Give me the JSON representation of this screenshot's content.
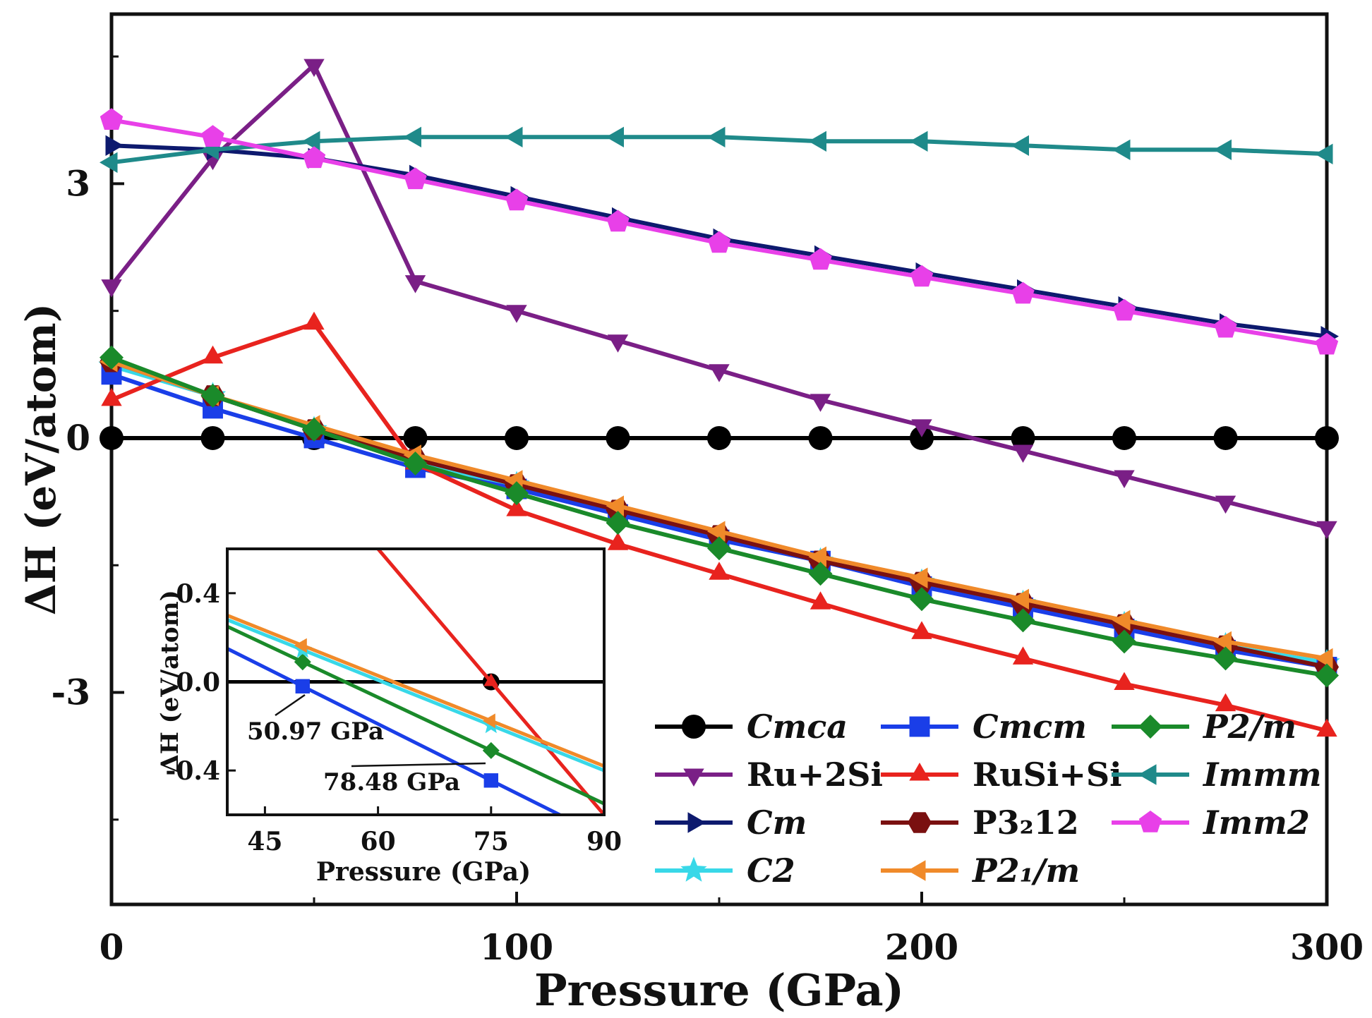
{
  "chart_data": [
    {
      "type": "line",
      "xlabel": "Pressure (GPa)",
      "ylabel": "ΔH (eV/atom)",
      "xlim": [
        0,
        300
      ],
      "ylim": [
        -5.5,
        5
      ],
      "xticks": [
        0,
        100,
        200,
        300
      ],
      "xtick_labels": [
        "0",
        "100",
        "200",
        "300"
      ],
      "yticks": [
        -3,
        0,
        3
      ],
      "ytick_labels": [
        "-3",
        "0",
        "3"
      ],
      "legend_position": "bottom-right",
      "x": [
        0,
        25,
        50,
        75,
        100,
        125,
        150,
        175,
        200,
        225,
        250,
        275,
        300
      ],
      "series": [
        {
          "key": "cmca",
          "name": "Cmca",
          "italic": true,
          "color": "#000000",
          "marker": "circle",
          "values": [
            0,
            0,
            0,
            0,
            0,
            0,
            0,
            0,
            0,
            0,
            0,
            0,
            0
          ]
        },
        {
          "key": "ru2si",
          "name": "Ru+2Si",
          "italic": false,
          "color": "#7a1f86",
          "marker": "triangle-down",
          "values": [
            1.8,
            3.3,
            4.4,
            1.85,
            1.5,
            1.15,
            0.8,
            0.45,
            0.15,
            -0.15,
            -0.45,
            -0.75,
            -1.05
          ]
        },
        {
          "key": "cm",
          "name": "Cm",
          "italic": true,
          "color": "#0d1a6e",
          "marker": "triangle-right",
          "values": [
            3.45,
            3.4,
            3.3,
            3.1,
            2.85,
            2.6,
            2.35,
            2.15,
            1.95,
            1.75,
            1.55,
            1.35,
            1.2
          ]
        },
        {
          "key": "c2",
          "name": "C2",
          "italic": true,
          "color": "#38d8e8",
          "marker": "star",
          "values": [
            0.85,
            0.5,
            0.1,
            -0.3,
            -0.55,
            -0.9,
            -1.2,
            -1.45,
            -1.7,
            -1.95,
            -2.2,
            -2.45,
            -2.65
          ]
        },
        {
          "key": "cmcm",
          "name": "Cmcm",
          "italic": true,
          "color": "#1a3ee8",
          "marker": "square",
          "values": [
            0.75,
            0.35,
            0.0,
            -0.35,
            -0.6,
            -0.9,
            -1.2,
            -1.45,
            -1.75,
            -2.0,
            -2.25,
            -2.5,
            -2.7
          ]
        },
        {
          "key": "rusisi",
          "name": "RuSi+Si",
          "italic": false,
          "color": "#e8231e",
          "marker": "triangle-up",
          "values": [
            0.45,
            0.95,
            1.35,
            -0.3,
            -0.85,
            -1.25,
            -1.6,
            -1.95,
            -2.3,
            -2.6,
            -2.9,
            -3.15,
            -3.45
          ]
        },
        {
          "key": "p3212",
          "name": "P3₂12",
          "italic": false,
          "color": "#7a1010",
          "marker": "hexagon",
          "values": [
            0.9,
            0.5,
            0.1,
            -0.25,
            -0.55,
            -0.85,
            -1.15,
            -1.45,
            -1.7,
            -1.95,
            -2.2,
            -2.45,
            -2.7
          ]
        },
        {
          "key": "p21m",
          "name": "P2₁/m",
          "italic": true,
          "color": "#f08a2a",
          "marker": "triangle-left",
          "values": [
            0.9,
            0.5,
            0.15,
            -0.2,
            -0.5,
            -0.8,
            -1.1,
            -1.4,
            -1.65,
            -1.9,
            -2.15,
            -2.4,
            -2.6
          ]
        },
        {
          "key": "p2m",
          "name": "P2/m",
          "italic": true,
          "color": "#1a8a2a",
          "marker": "diamond",
          "values": [
            0.95,
            0.5,
            0.1,
            -0.3,
            -0.65,
            -1.0,
            -1.3,
            -1.6,
            -1.9,
            -2.15,
            -2.4,
            -2.6,
            -2.8
          ]
        },
        {
          "key": "immm",
          "name": "Immm",
          "italic": true,
          "color": "#1f8a8a",
          "marker": "triangle-left",
          "values": [
            3.25,
            3.4,
            3.5,
            3.55,
            3.55,
            3.55,
            3.55,
            3.5,
            3.5,
            3.45,
            3.4,
            3.4,
            3.35
          ]
        },
        {
          "key": "imm2",
          "name": "Imm2",
          "italic": true,
          "color": "#e840e8",
          "marker": "pentagon",
          "values": [
            3.75,
            3.55,
            3.3,
            3.05,
            2.8,
            2.55,
            2.3,
            2.1,
            1.9,
            1.7,
            1.5,
            1.3,
            1.1
          ]
        }
      ]
    },
    {
      "type": "line",
      "role": "inset",
      "xlabel": "Pressure (GPa)",
      "ylabel": "ΔH (eV/atom)",
      "xlim": [
        40,
        90
      ],
      "ylim": [
        -0.6,
        0.6
      ],
      "xticks": [
        45,
        60,
        75,
        90
      ],
      "xtick_labels": [
        "45",
        "60",
        "75",
        "90"
      ],
      "yticks": [
        0.4,
        0.0,
        -0.4
      ],
      "ytick_labels": [
        "0.4",
        "0.0",
        "-0.4"
      ],
      "series": [
        {
          "key": "cmca",
          "name": "Cmca",
          "x": [
            40,
            90
          ],
          "values": [
            0,
            0
          ],
          "color": "#000000",
          "marker_x": [
            75
          ],
          "marker": "circle"
        },
        {
          "key": "cmcm",
          "name": "Cmcm",
          "x": [
            40,
            90
          ],
          "values": [
            0.15,
            -0.7
          ],
          "color": "#1a3ee8",
          "marker_x": [
            50,
            75
          ],
          "marker": "square"
        },
        {
          "key": "rusisi",
          "name": "RuSi+Si",
          "x": [
            60,
            90
          ],
          "values": [
            0.6,
            -0.6
          ],
          "color": "#e8231e",
          "marker_x": [
            75
          ],
          "marker": "triangle-up"
        },
        {
          "key": "p2m",
          "name": "P2/m",
          "x": [
            40,
            90
          ],
          "values": [
            0.25,
            -0.55
          ],
          "color": "#1a8a2a",
          "marker_x": [
            50,
            75
          ],
          "marker": "diamond"
        },
        {
          "key": "c2",
          "name": "C2",
          "x": [
            40,
            90
          ],
          "values": [
            0.28,
            -0.4
          ],
          "color": "#38d8e8",
          "marker_x": [
            50,
            75
          ],
          "marker": "star"
        },
        {
          "key": "p21m",
          "name": "P2₁/m",
          "x": [
            40,
            90
          ],
          "values": [
            0.3,
            -0.38
          ],
          "color": "#f08a2a",
          "marker_x": [
            50,
            75
          ],
          "marker": "triangle-left"
        }
      ],
      "annotations": [
        {
          "text": "50.97 GPa",
          "x": 50.97,
          "y": 0.0
        },
        {
          "text": "78.48 GPa",
          "x": 78.48,
          "y": -0.35
        }
      ]
    }
  ]
}
